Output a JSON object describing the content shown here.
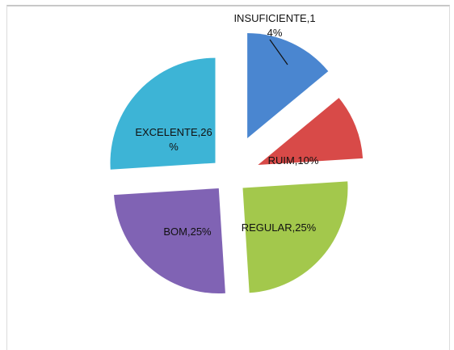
{
  "chart_data": {
    "type": "pie",
    "exploded": true,
    "slices": [
      {
        "category": "INSUFICIENTE",
        "value": 14,
        "label_line1": "INSUFICIENTE,1",
        "label_line2": "4%",
        "color": "#4a86d0"
      },
      {
        "category": "RUIM",
        "value": 10,
        "label_line1": "RUIM,10%",
        "label_line2": "",
        "color": "#d84a48"
      },
      {
        "category": "REGULAR",
        "value": 25,
        "label_line1": "REGULAR,25%",
        "label_line2": "",
        "color": "#a3c84c"
      },
      {
        "category": "BOM",
        "value": 25,
        "label_line1": "BOM,25%",
        "label_line2": "",
        "color": "#8063b4"
      },
      {
        "category": "EXCELENTE",
        "value": 26,
        "label_line1": "EXCELENTE,26",
        "label_line2": "%",
        "color": "#3db4d6"
      }
    ]
  }
}
